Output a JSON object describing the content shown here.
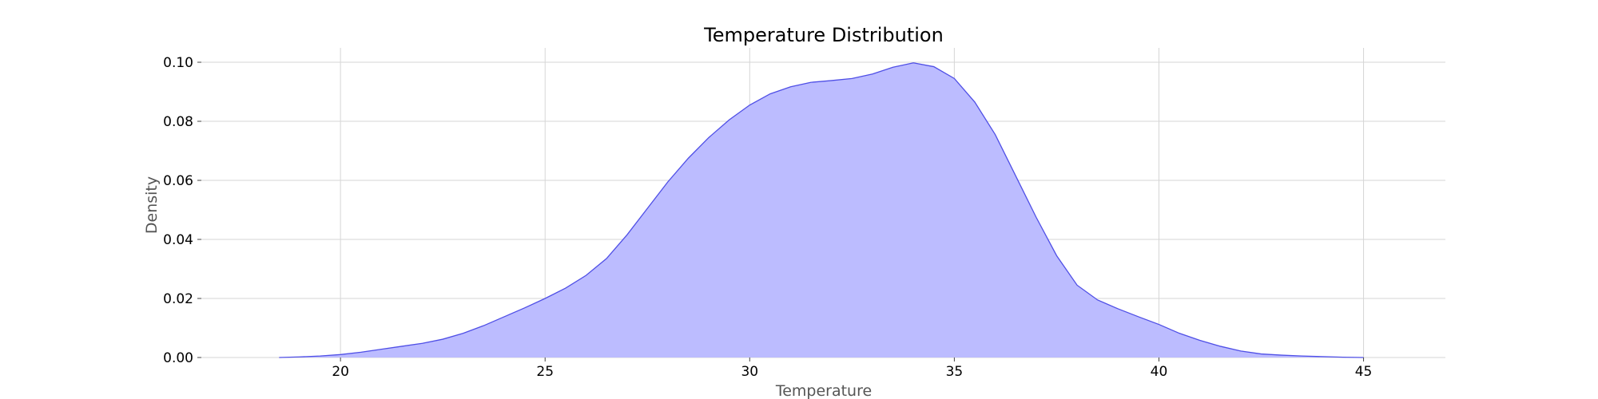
{
  "chart_data": {
    "type": "area",
    "title": "Temperature Distribution",
    "xlabel": "Temperature",
    "ylabel": "Density",
    "xlim": [
      16.6,
      47.0
    ],
    "ylim": [
      0.0,
      0.1
    ],
    "xticks": [
      20,
      25,
      30,
      35,
      40,
      45
    ],
    "xtick_labels": [
      "20",
      "25",
      "30",
      "35",
      "40",
      "45"
    ],
    "yticks": [
      0.0,
      0.02,
      0.04,
      0.06,
      0.08,
      0.1
    ],
    "ytick_labels": [
      "0.00",
      "0.02",
      "0.04",
      "0.06",
      "0.08",
      "0.10"
    ],
    "grid": true,
    "series": [
      {
        "x": [
          18.5,
          19.0,
          19.5,
          20.0,
          20.5,
          21.0,
          21.5,
          22.0,
          22.5,
          23.0,
          23.5,
          24.0,
          24.5,
          25.0,
          25.5,
          26.0,
          26.5,
          27.0,
          27.5,
          28.0,
          28.5,
          29.0,
          29.5,
          30.0,
          30.5,
          31.0,
          31.5,
          32.0,
          32.5,
          33.0,
          33.5,
          34.0,
          34.5,
          35.0,
          35.5,
          36.0,
          36.5,
          37.0,
          37.5,
          38.0,
          38.5,
          39.0,
          39.5,
          40.0,
          40.5,
          41.0,
          41.5,
          42.0,
          42.5,
          43.0,
          43.5,
          44.0,
          44.5,
          45.0
        ],
        "y": [
          0.0,
          0.0002,
          0.0005,
          0.001,
          0.0018,
          0.0028,
          0.0038,
          0.0048,
          0.0062,
          0.0082,
          0.0108,
          0.0138,
          0.0168,
          0.02,
          0.0235,
          0.0278,
          0.0335,
          0.0415,
          0.0505,
          0.0595,
          0.0675,
          0.0745,
          0.0805,
          0.0855,
          0.0893,
          0.0917,
          0.0932,
          0.0938,
          0.0945,
          0.096,
          0.0983,
          0.0998,
          0.0985,
          0.0945,
          0.0865,
          0.0755,
          0.0615,
          0.0475,
          0.0345,
          0.0245,
          0.0195,
          0.0165,
          0.0138,
          0.0112,
          0.0082,
          0.0058,
          0.0038,
          0.0022,
          0.0012,
          0.0008,
          0.0005,
          0.0003,
          0.0001,
          0.0
        ]
      }
    ],
    "colors": {
      "fill": "#bcbcff",
      "line": "#4f4fe6",
      "grid": "#d6d6d6",
      "tick": "#444444"
    }
  }
}
